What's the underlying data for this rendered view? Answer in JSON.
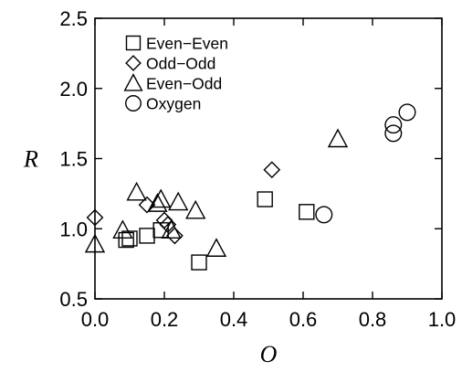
{
  "chart_data": {
    "type": "scatter",
    "title": "",
    "xlabel": "O",
    "ylabel": "R",
    "xlim": [
      0.0,
      1.0
    ],
    "ylim": [
      0.5,
      2.5
    ],
    "xticks": [
      "0.0",
      "0.2",
      "0.4",
      "0.6",
      "0.8",
      "1.0"
    ],
    "yticks": [
      "0.5",
      "1.0",
      "1.5",
      "2.0",
      "2.5"
    ],
    "grid": false,
    "legend_position": "top-left",
    "series": [
      {
        "name": "Even−Even",
        "marker": "square",
        "points": [
          {
            "x": 0.09,
            "y": 0.92
          },
          {
            "x": 0.1,
            "y": 0.93
          },
          {
            "x": 0.15,
            "y": 0.95
          },
          {
            "x": 0.19,
            "y": 0.99
          },
          {
            "x": 0.3,
            "y": 0.76
          },
          {
            "x": 0.49,
            "y": 1.21
          },
          {
            "x": 0.61,
            "y": 1.12
          }
        ]
      },
      {
        "name": "Odd−Odd",
        "marker": "diamond",
        "points": [
          {
            "x": 0.0,
            "y": 1.08
          },
          {
            "x": 0.15,
            "y": 1.17
          },
          {
            "x": 0.2,
            "y": 1.06
          },
          {
            "x": 0.21,
            "y": 1.03
          },
          {
            "x": 0.23,
            "y": 0.95
          },
          {
            "x": 0.51,
            "y": 1.42
          }
        ]
      },
      {
        "name": "Even−Odd",
        "marker": "triangle",
        "points": [
          {
            "x": 0.0,
            "y": 0.89
          },
          {
            "x": 0.08,
            "y": 0.99
          },
          {
            "x": 0.12,
            "y": 1.26
          },
          {
            "x": 0.18,
            "y": 1.18
          },
          {
            "x": 0.19,
            "y": 1.21
          },
          {
            "x": 0.22,
            "y": 0.99
          },
          {
            "x": 0.24,
            "y": 1.19
          },
          {
            "x": 0.29,
            "y": 1.13
          },
          {
            "x": 0.35,
            "y": 0.86
          },
          {
            "x": 0.7,
            "y": 1.64
          }
        ]
      },
      {
        "name": "Oxygen",
        "marker": "circle",
        "points": [
          {
            "x": 0.66,
            "y": 1.1
          },
          {
            "x": 0.86,
            "y": 1.68
          },
          {
            "x": 0.86,
            "y": 1.74
          },
          {
            "x": 0.9,
            "y": 1.83
          }
        ]
      }
    ]
  }
}
